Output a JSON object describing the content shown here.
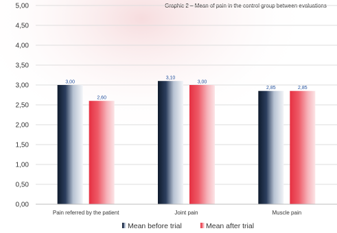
{
  "chart_data": {
    "type": "bar",
    "title": "Graphic 2 – Mean of pain in the control group between evaluations",
    "categories": [
      "Pain referred by the patient",
      "Joint pain",
      "Muscle pain"
    ],
    "series": [
      {
        "name": "Mean before trial",
        "values": [
          3.0,
          3.1,
          2.85
        ],
        "labels": [
          "3,00",
          "3,10",
          "2,85"
        ],
        "color": "#1c2b40"
      },
      {
        "name": "Mean after trial",
        "values": [
          2.6,
          3.0,
          2.85
        ],
        "labels": [
          "2,60",
          "3,00",
          "2,85"
        ],
        "color": "#ea4655"
      }
    ],
    "ylim": [
      0,
      5
    ],
    "yticks": [
      {
        "value": 0,
        "label": "0,00"
      },
      {
        "value": 0.5,
        "label": "0,50"
      },
      {
        "value": 1,
        "label": "1,00"
      },
      {
        "value": 1.5,
        "label": "1,50"
      },
      {
        "value": 2,
        "label": "2,00"
      },
      {
        "value": 2.5,
        "label": "2,50"
      },
      {
        "value": 3,
        "label": "3,00"
      },
      {
        "value": 3.5,
        "label": "3,50"
      },
      {
        "value": 4,
        "label": "4,00"
      },
      {
        "value": 4.5,
        "label": "4,50"
      },
      {
        "value": 5,
        "label": "5,00"
      }
    ],
    "grid": true,
    "legend_position": "bottom"
  }
}
